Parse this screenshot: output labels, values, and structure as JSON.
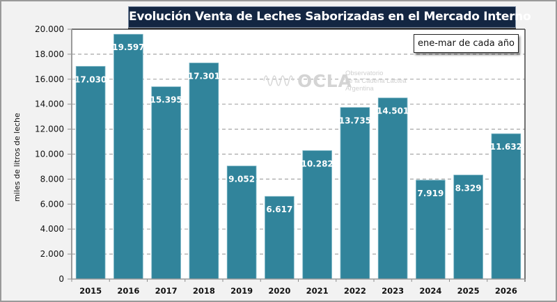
{
  "chart_data": {
    "type": "bar",
    "title": "Evolución  Venta de Leches Saborizadas  en el Mercado Interno",
    "note": "ene-mar  de cada año",
    "xlabel": "",
    "ylabel": "miles de litros de leche",
    "categories": [
      "2015",
      "2016",
      "2017",
      "2018",
      "2019",
      "2020",
      "2021",
      "2022",
      "2023",
      "2024",
      "2025",
      "2026"
    ],
    "values": [
      17030,
      19597,
      15395,
      17301,
      9052,
      6617,
      10282,
      13735,
      14501,
      7919,
      8329,
      11632
    ],
    "value_labels": [
      "17.030",
      "19.597",
      "15.395",
      "17.301",
      "9.052",
      "6.617",
      "10.282",
      "13.735",
      "14.501",
      "7.919",
      "8.329",
      "11.632"
    ],
    "ylim": [
      0,
      20000
    ],
    "yticks": [
      0,
      2000,
      4000,
      6000,
      8000,
      10000,
      12000,
      14000,
      16000,
      18000,
      20000
    ],
    "ytick_labels": [
      "0",
      "2.000",
      "4.000",
      "6.000",
      "8.000",
      "10.000",
      "12.000",
      "14.000",
      "16.000",
      "18.000",
      "20.000"
    ],
    "grid": "horizontal dashed",
    "legend": "none",
    "bar_color": "#31849b"
  },
  "watermark": {
    "brand": "OCLA",
    "line1": "Observatorio",
    "line2": "de la Cadena Láctea",
    "line3": "Argentina"
  }
}
